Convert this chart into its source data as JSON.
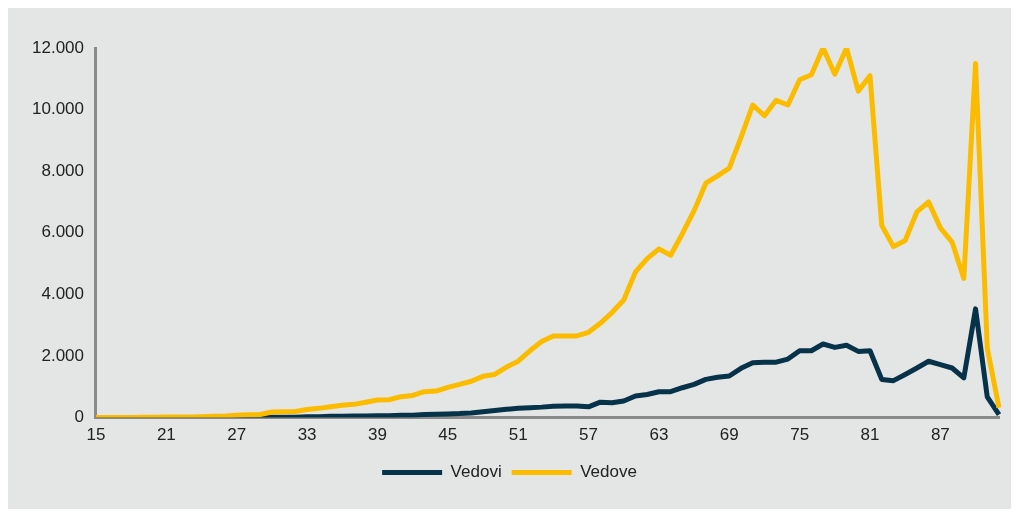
{
  "chart_data": {
    "type": "line",
    "categories": [
      "15",
      null,
      null,
      null,
      null,
      null,
      "21",
      null,
      null,
      null,
      null,
      null,
      "27",
      null,
      null,
      null,
      null,
      null,
      "33",
      null,
      null,
      null,
      null,
      null,
      "39",
      null,
      null,
      null,
      null,
      null,
      "45",
      null,
      null,
      null,
      null,
      null,
      "51",
      null,
      null,
      null,
      null,
      null,
      "57",
      null,
      null,
      null,
      null,
      null,
      "63",
      null,
      null,
      null,
      null,
      null,
      "69",
      null,
      null,
      null,
      null,
      null,
      "75",
      null,
      null,
      null,
      null,
      null,
      "81",
      null,
      null,
      null,
      null,
      null,
      "87",
      null,
      null,
      null,
      null,
      null
    ],
    "series": [
      {
        "name": "Vedovi",
        "color": "#06324a",
        "values": [
          0,
          0,
          0,
          0,
          0,
          0,
          0,
          0,
          0,
          0,
          0,
          0,
          0,
          0,
          10,
          10,
          10,
          10,
          30,
          30,
          40,
          40,
          50,
          50,
          60,
          60,
          80,
          80,
          100,
          110,
          120,
          130,
          150,
          190,
          230,
          270,
          300,
          320,
          340,
          370,
          380,
          380,
          350,
          500,
          480,
          540,
          700,
          750,
          840,
          840,
          970,
          1080,
          1240,
          1310,
          1350,
          1600,
          1780,
          1800,
          1800,
          1900,
          2170,
          2170,
          2390,
          2280,
          2350,
          2150,
          2170,
          1240,
          1200,
          1400,
          1610,
          1830,
          1720,
          1610,
          1290,
          3530,
          670,
          100
        ]
      },
      {
        "name": "Vedove",
        "color": "#fbbc00",
        "values": [
          0,
          0,
          0,
          0,
          10,
          10,
          20,
          20,
          20,
          30,
          40,
          50,
          80,
          90,
          100,
          180,
          190,
          200,
          260,
          300,
          350,
          400,
          430,
          500,
          570,
          580,
          680,
          720,
          840,
          860,
          980,
          1080,
          1180,
          1340,
          1400,
          1640,
          1830,
          2170,
          2470,
          2650,
          2650,
          2650,
          2770,
          3060,
          3410,
          3820,
          4730,
          5160,
          5480,
          5270,
          5970,
          6720,
          7610,
          7850,
          8100,
          9100,
          10150,
          9800,
          10300,
          10150,
          10970,
          11130,
          12000,
          11150,
          12000,
          10600,
          11100,
          6240,
          5550,
          5750,
          6680,
          7000,
          6160,
          5700,
          4520,
          11500,
          2260,
          320
        ]
      }
    ],
    "ylim": [
      0,
      12000
    ],
    "yticks": [
      {
        "value": 0,
        "label": "0"
      },
      {
        "value": 2000,
        "label": "2.000"
      },
      {
        "value": 4000,
        "label": "4.000"
      },
      {
        "value": 6000,
        "label": "6.000"
      },
      {
        "value": 8000,
        "label": "8.000"
      },
      {
        "value": 10000,
        "label": "10.000"
      },
      {
        "value": 12000,
        "label": "12.000"
      }
    ],
    "grid": false,
    "legend": "bottom",
    "marker": "none",
    "line_style": "solid"
  }
}
